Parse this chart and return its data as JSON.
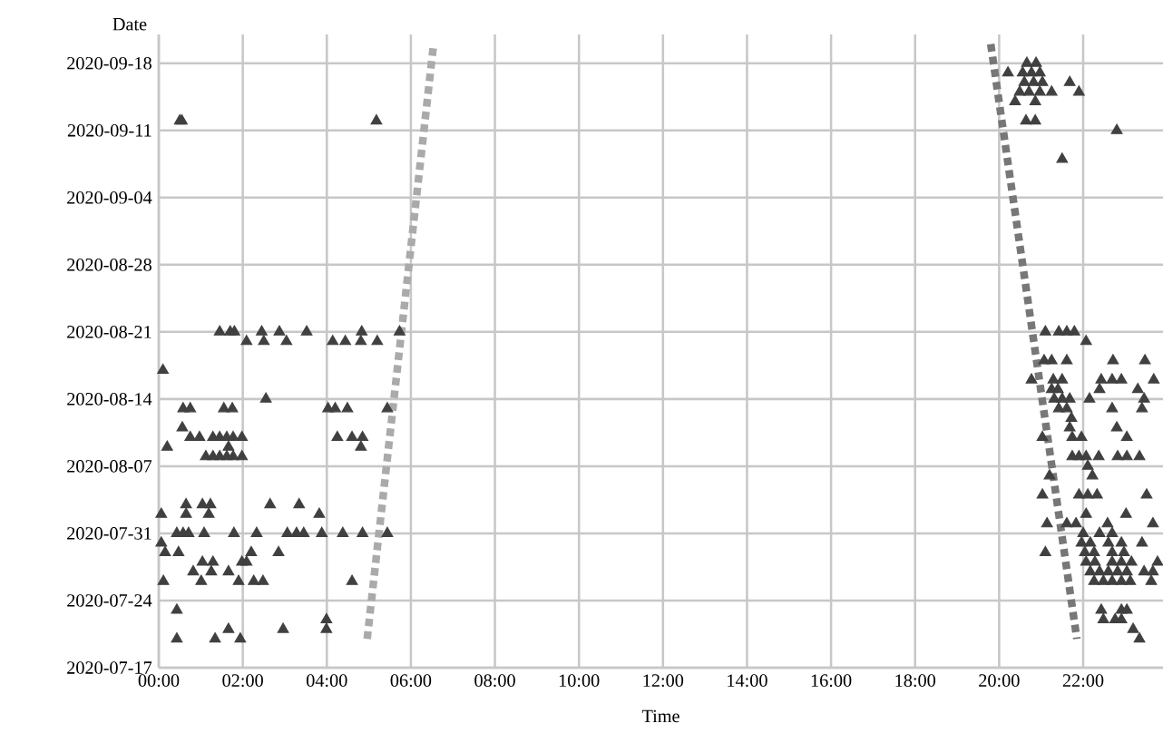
{
  "chart_data": {
    "type": "scatter",
    "orientation": "horizontal",
    "xlabel": "Time",
    "ylabel": "Date",
    "xlim": [
      0,
      23.9
    ],
    "ylim": [
      "2020-07-17",
      "2020-09-21"
    ],
    "xticks": [
      {
        "value": 0,
        "label": "00:00"
      },
      {
        "value": 2,
        "label": "02:00"
      },
      {
        "value": 4,
        "label": "04:00"
      },
      {
        "value": 6,
        "label": "06:00"
      },
      {
        "value": 8,
        "label": "08:00"
      },
      {
        "value": 10,
        "label": "10:00"
      },
      {
        "value": 12,
        "label": "12:00"
      },
      {
        "value": 14,
        "label": "14:00"
      },
      {
        "value": 16,
        "label": "16:00"
      },
      {
        "value": 18,
        "label": "18:00"
      },
      {
        "value": 20,
        "label": "20:00"
      },
      {
        "value": 22,
        "label": "22:00"
      }
    ],
    "yticks": [
      "2020-07-17",
      "2020-07-24",
      "2020-07-31",
      "2020-08-07",
      "2020-08-14",
      "2020-08-21",
      "2020-08-28",
      "2020-09-04",
      "2020-09-11",
      "2020-09-18"
    ],
    "grid": true,
    "marker": "triangle",
    "series": [
      {
        "type": "scatter",
        "color": "#404040",
        "values": [
          0.1,
          0.2,
          1.66,
          4.81,
          0.5,
          0.55,
          5.18,
          20.64,
          20.86,
          1.45,
          1.7,
          1.8,
          2.45,
          2.87,
          3.52,
          4.83,
          5.73,
          21.1,
          21.42,
          21.61,
          21.79,
          2.09,
          2.5,
          3.04,
          4.14,
          4.44,
          4.81,
          5.2,
          22.07,
          2.55,
          21.31,
          21.5,
          21.68,
          22.15,
          23.45,
          0.58,
          0.75,
          1.55,
          1.75,
          4.03,
          4.2,
          4.49,
          5.44,
          21.42,
          21.61,
          22.69,
          23.4,
          0.56,
          21.68,
          22.8,
          0.75,
          0.97,
          1.29,
          1.45,
          1.62,
          1.77,
          1.98,
          4.25,
          4.6,
          4.85,
          21.03,
          21.74,
          21.96,
          23.04,
          1.12,
          1.29,
          1.45,
          1.62,
          1.77,
          1.98,
          21.74,
          21.9,
          22.07,
          22.37,
          22.82,
          23.04,
          23.34,
          0.65,
          1.04,
          1.23,
          2.65,
          3.34,
          0.06,
          0.65,
          1.19,
          3.82,
          22.07,
          23.02,
          0.43,
          0.58,
          0.71,
          1.08,
          1.79,
          2.33,
          3.06,
          3.28,
          3.45,
          3.88,
          4.38,
          4.85,
          5.44,
          22.0,
          22.39,
          22.69,
          0.06,
          21.96,
          22.17,
          22.6,
          22.91,
          23.4,
          0.15,
          0.47,
          2.2,
          2.85,
          21.1,
          22.04,
          22.26,
          22.69,
          22.97,
          1.04,
          1.29,
          1.98,
          2.09,
          22.07,
          22.28,
          22.69,
          22.91,
          23.15,
          23.77,
          0.82,
          1.25,
          1.66,
          22.17,
          22.39,
          22.6,
          22.82,
          23.04,
          23.45,
          23.66,
          0.11,
          1.01,
          1.9,
          2.26,
          2.48,
          4.6,
          22.26,
          22.48,
          22.69,
          22.91,
          23.12,
          23.62,
          0.43,
          22.43,
          22.91,
          23.04,
          3.99,
          22.48,
          22.76,
          22.91,
          1.66,
          2.96,
          3.99,
          23.19,
          0.43,
          1.34,
          1.94,
          23.34,
          20.66,
          20.88,
          20.21,
          20.56,
          20.77,
          20.97,
          20.6,
          20.82,
          21.03,
          21.68,
          20.49,
          20.71,
          20.97,
          21.25,
          21.9,
          20.38,
          20.86,
          22.8,
          21.5,
          21.07,
          21.25,
          21.61,
          22.71,
          23.47,
          20.77,
          21.29,
          21.5,
          22.43,
          22.69,
          22.91,
          23.68,
          21.25,
          21.4,
          22.39,
          23.3,
          21.72,
          22.11,
          21.2,
          22.22,
          21.03,
          21.9,
          22.11,
          22.33,
          23.51,
          21.14,
          21.61,
          21.83,
          22.58,
          23.66
        ],
        "x": [
          "2020-08-17",
          "2020-08-09",
          "2020-08-09",
          "2020-08-09",
          "2020-09-12",
          "2020-09-12",
          "2020-09-12",
          "2020-09-12",
          "2020-09-12",
          "2020-08-21",
          "2020-08-21",
          "2020-08-21",
          "2020-08-21",
          "2020-08-21",
          "2020-08-21",
          "2020-08-21",
          "2020-08-21",
          "2020-08-21",
          "2020-08-21",
          "2020-08-21",
          "2020-08-21",
          "2020-08-20",
          "2020-08-20",
          "2020-08-20",
          "2020-08-20",
          "2020-08-20",
          "2020-08-20",
          "2020-08-20",
          "2020-08-20",
          "2020-08-14",
          "2020-08-14",
          "2020-08-14",
          "2020-08-14",
          "2020-08-14",
          "2020-08-14",
          "2020-08-13",
          "2020-08-13",
          "2020-08-13",
          "2020-08-13",
          "2020-08-13",
          "2020-08-13",
          "2020-08-13",
          "2020-08-13",
          "2020-08-13",
          "2020-08-13",
          "2020-08-13",
          "2020-08-13",
          "2020-08-11",
          "2020-08-11",
          "2020-08-11",
          "2020-08-10",
          "2020-08-10",
          "2020-08-10",
          "2020-08-10",
          "2020-08-10",
          "2020-08-10",
          "2020-08-10",
          "2020-08-10",
          "2020-08-10",
          "2020-08-10",
          "2020-08-10",
          "2020-08-10",
          "2020-08-10",
          "2020-08-10",
          "2020-08-08",
          "2020-08-08",
          "2020-08-08",
          "2020-08-08",
          "2020-08-08",
          "2020-08-08",
          "2020-08-08",
          "2020-08-08",
          "2020-08-08",
          "2020-08-08",
          "2020-08-08",
          "2020-08-08",
          "2020-08-08",
          "2020-08-03",
          "2020-08-03",
          "2020-08-03",
          "2020-08-03",
          "2020-08-03",
          "2020-08-02",
          "2020-08-02",
          "2020-08-02",
          "2020-08-02",
          "2020-08-02",
          "2020-08-02",
          "2020-07-31",
          "2020-07-31",
          "2020-07-31",
          "2020-07-31",
          "2020-07-31",
          "2020-07-31",
          "2020-07-31",
          "2020-07-31",
          "2020-07-31",
          "2020-07-31",
          "2020-07-31",
          "2020-07-31",
          "2020-07-31",
          "2020-07-31",
          "2020-07-31",
          "2020-07-31",
          "2020-07-30",
          "2020-07-30",
          "2020-07-30",
          "2020-07-30",
          "2020-07-30",
          "2020-07-30",
          "2020-07-29",
          "2020-07-29",
          "2020-07-29",
          "2020-07-29",
          "2020-07-29",
          "2020-07-29",
          "2020-07-29",
          "2020-07-29",
          "2020-07-29",
          "2020-07-28",
          "2020-07-28",
          "2020-07-28",
          "2020-07-28",
          "2020-07-28",
          "2020-07-28",
          "2020-07-28",
          "2020-07-28",
          "2020-07-28",
          "2020-07-28",
          "2020-07-27",
          "2020-07-27",
          "2020-07-27",
          "2020-07-27",
          "2020-07-27",
          "2020-07-27",
          "2020-07-27",
          "2020-07-27",
          "2020-07-27",
          "2020-07-27",
          "2020-07-26",
          "2020-07-26",
          "2020-07-26",
          "2020-07-26",
          "2020-07-26",
          "2020-07-26",
          "2020-07-26",
          "2020-07-26",
          "2020-07-26",
          "2020-07-26",
          "2020-07-26",
          "2020-07-26",
          "2020-07-23",
          "2020-07-23",
          "2020-07-23",
          "2020-07-23",
          "2020-07-22",
          "2020-07-22",
          "2020-07-22",
          "2020-07-22",
          "2020-07-21",
          "2020-07-21",
          "2020-07-21",
          "2020-07-21",
          "2020-07-20",
          "2020-07-20",
          "2020-07-20",
          "2020-07-20",
          "2020-09-18",
          "2020-09-18",
          "2020-09-17",
          "2020-09-17",
          "2020-09-17",
          "2020-09-17",
          "2020-09-16",
          "2020-09-16",
          "2020-09-16",
          "2020-09-16",
          "2020-09-15",
          "2020-09-15",
          "2020-09-15",
          "2020-09-15",
          "2020-09-15",
          "2020-09-14",
          "2020-09-14",
          "2020-09-11",
          "2020-09-08",
          "2020-08-18",
          "2020-08-18",
          "2020-08-18",
          "2020-08-18",
          "2020-08-18",
          "2020-08-16",
          "2020-08-16",
          "2020-08-16",
          "2020-08-16",
          "2020-08-16",
          "2020-08-16",
          "2020-08-16",
          "2020-08-15",
          "2020-08-15",
          "2020-08-15",
          "2020-08-15",
          "2020-08-12",
          "2020-08-07",
          "2020-08-06",
          "2020-08-06",
          "2020-08-04",
          "2020-08-04",
          "2020-08-04",
          "2020-08-04",
          "2020-08-04",
          "2020-08-01",
          "2020-08-01",
          "2020-08-01",
          "2020-08-01",
          "2020-08-01"
        ]
      },
      {
        "type": "line",
        "color": "#aaaaaa",
        "marker": "none",
        "line_style": "dotted",
        "values": [
          4.96,
          6.54
        ],
        "x": [
          "2020-07-20",
          "2020-09-20"
        ]
      },
      {
        "type": "line",
        "color": "#777777",
        "marker": "none",
        "line_style": "dotted",
        "values": [
          19.8,
          21.85
        ],
        "x": [
          "2020-09-20",
          "2020-07-20"
        ]
      }
    ]
  }
}
